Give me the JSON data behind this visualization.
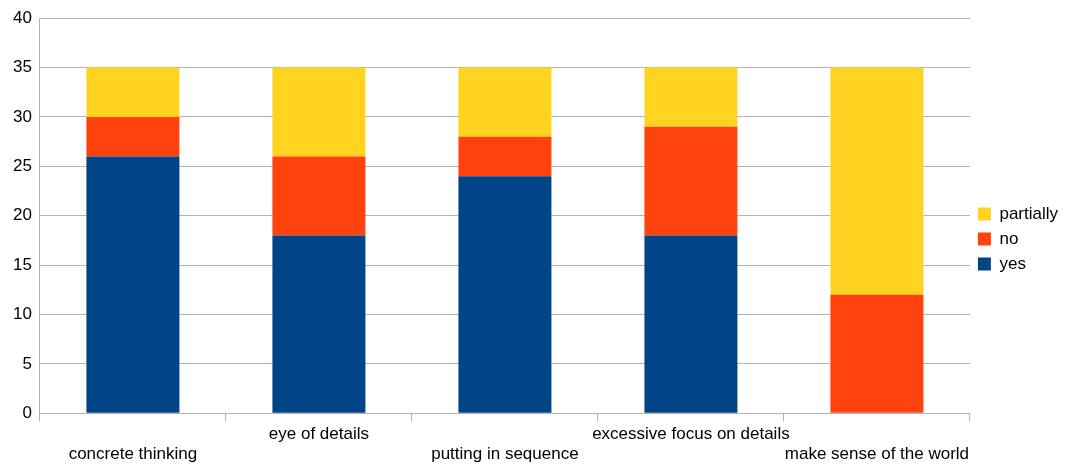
{
  "chart_data": {
    "type": "bar",
    "stacked": true,
    "categories": [
      "concrete thinking",
      "eye of details",
      "putting in sequence",
      "excessive focus on details",
      "make sense of the world"
    ],
    "series": [
      {
        "name": "yes",
        "color": "#004586",
        "values": [
          26,
          18,
          24,
          18,
          0
        ]
      },
      {
        "name": "no",
        "color": "#ff420e",
        "values": [
          4,
          8,
          4,
          11,
          12
        ]
      },
      {
        "name": "partially",
        "color": "#ffd320",
        "values": [
          5,
          9,
          7,
          6,
          23
        ]
      }
    ],
    "ylim": [
      0,
      40
    ],
    "yticks": [
      0,
      5,
      10,
      15,
      20,
      25,
      30,
      35,
      40
    ],
    "grid": "y",
    "legend": "right"
  }
}
